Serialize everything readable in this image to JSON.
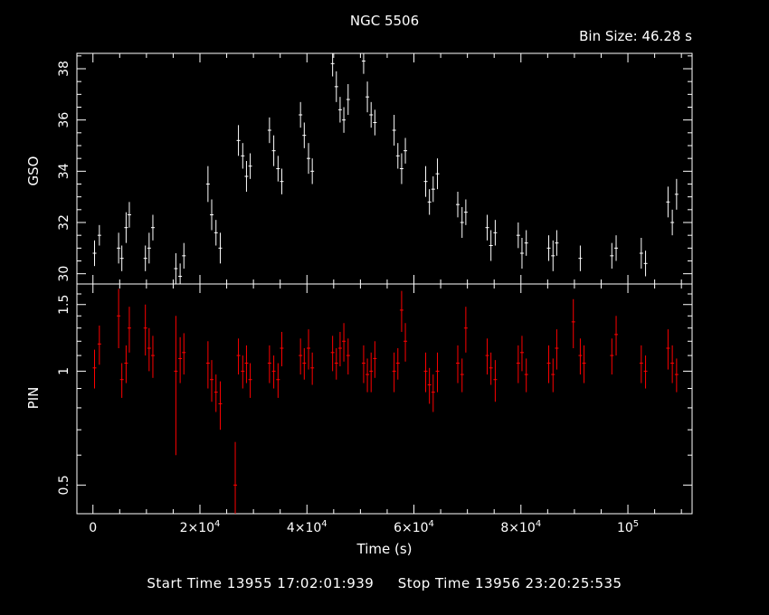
{
  "chart_data": [
    {
      "type": "scatter",
      "title": "NGC 5506",
      "subtitle": "Bin Size: 46.28 s",
      "ylabel": "GSO",
      "xlim": [
        -3000,
        112000
      ],
      "ylim": [
        29.6,
        38.6
      ],
      "yscale": "linear",
      "yticks": [
        30,
        32,
        34,
        36,
        38
      ],
      "ytick_labels": [
        "30",
        "32",
        "34",
        "36",
        "38"
      ],
      "error_bars": true,
      "color": "#ffffff",
      "series": [
        {
          "points": [
            [
              300,
              30.8,
              0.5
            ],
            [
              1200,
              31.5,
              0.4
            ],
            [
              4800,
              31.0,
              0.6
            ],
            [
              5400,
              30.6,
              0.5
            ],
            [
              6200,
              31.8,
              0.6
            ],
            [
              6800,
              32.3,
              0.5
            ],
            [
              9800,
              30.6,
              0.5
            ],
            [
              10500,
              31.0,
              0.6
            ],
            [
              11200,
              31.8,
              0.5
            ],
            [
              15500,
              30.2,
              0.6
            ],
            [
              16300,
              29.9,
              0.5
            ],
            [
              17000,
              30.7,
              0.5
            ],
            [
              21500,
              33.5,
              0.7
            ],
            [
              22200,
              32.3,
              0.6
            ],
            [
              23000,
              31.6,
              0.5
            ],
            [
              23800,
              31.0,
              0.6
            ],
            [
              27200,
              35.2,
              0.6
            ],
            [
              28000,
              34.6,
              0.5
            ],
            [
              28700,
              33.8,
              0.6
            ],
            [
              29400,
              34.2,
              0.5
            ],
            [
              33000,
              35.6,
              0.5
            ],
            [
              33800,
              34.8,
              0.6
            ],
            [
              34600,
              34.1,
              0.5
            ],
            [
              35300,
              33.6,
              0.5
            ],
            [
              38800,
              36.2,
              0.5
            ],
            [
              39500,
              35.4,
              0.5
            ],
            [
              40300,
              34.5,
              0.6
            ],
            [
              41000,
              34.0,
              0.5
            ],
            [
              44800,
              38.2,
              0.5
            ],
            [
              45500,
              37.3,
              0.6
            ],
            [
              46200,
              36.4,
              0.5
            ],
            [
              46900,
              36.0,
              0.5
            ],
            [
              47700,
              36.8,
              0.6
            ],
            [
              50600,
              38.3,
              0.5
            ],
            [
              51300,
              36.9,
              0.6
            ],
            [
              52000,
              36.2,
              0.5
            ],
            [
              52700,
              35.9,
              0.5
            ],
            [
              56300,
              35.6,
              0.6
            ],
            [
              57000,
              34.6,
              0.5
            ],
            [
              57700,
              34.1,
              0.6
            ],
            [
              58400,
              34.8,
              0.5
            ],
            [
              62200,
              33.6,
              0.6
            ],
            [
              62900,
              32.8,
              0.5
            ],
            [
              63600,
              33.3,
              0.5
            ],
            [
              64400,
              33.9,
              0.6
            ],
            [
              68200,
              32.7,
              0.5
            ],
            [
              69000,
              32.0,
              0.6
            ],
            [
              69700,
              32.4,
              0.5
            ],
            [
              73700,
              31.8,
              0.5
            ],
            [
              74400,
              31.1,
              0.6
            ],
            [
              75200,
              31.6,
              0.5
            ],
            [
              79500,
              31.5,
              0.5
            ],
            [
              80200,
              30.8,
              0.6
            ],
            [
              81000,
              31.2,
              0.5
            ],
            [
              85200,
              31.0,
              0.5
            ],
            [
              86000,
              30.7,
              0.6
            ],
            [
              86700,
              31.2,
              0.5
            ],
            [
              91100,
              30.6,
              0.5
            ],
            [
              97000,
              30.7,
              0.5
            ],
            [
              97800,
              31.0,
              0.5
            ],
            [
              102500,
              30.8,
              0.6
            ],
            [
              103300,
              30.4,
              0.5
            ],
            [
              107500,
              32.8,
              0.6
            ],
            [
              108300,
              32.0,
              0.5
            ],
            [
              109100,
              33.1,
              0.6
            ]
          ]
        }
      ]
    },
    {
      "type": "scatter",
      "ylabel": "PIN",
      "xlabel": "Time (s)",
      "xlim": [
        -3000,
        112000
      ],
      "ylim": [
        0.42,
        1.7
      ],
      "yscale": "log",
      "yticks": [
        0.5,
        1,
        1.5
      ],
      "ytick_labels": [
        "0.5",
        "1",
        "1.5"
      ],
      "xticks": [
        0,
        20000,
        40000,
        60000,
        80000,
        100000
      ],
      "xtick_labels": [
        {
          "base": "0",
          "exp": ""
        },
        {
          "base": "2×10",
          "exp": "4"
        },
        {
          "base": "4×10",
          "exp": "4"
        },
        {
          "base": "6×10",
          "exp": "4"
        },
        {
          "base": "8×10",
          "exp": "4"
        },
        {
          "base": "10",
          "exp": "5"
        }
      ],
      "error_bars": true,
      "color": "#ff0000",
      "series": [
        {
          "points": [
            [
              300,
              1.02,
              0.12
            ],
            [
              1200,
              1.18,
              0.14
            ],
            [
              4800,
              1.4,
              0.25
            ],
            [
              5400,
              0.95,
              0.1
            ],
            [
              6200,
              1.05,
              0.12
            ],
            [
              6800,
              1.3,
              0.18
            ],
            [
              9800,
              1.3,
              0.2
            ],
            [
              10500,
              1.15,
              0.15
            ],
            [
              11200,
              1.1,
              0.14
            ],
            [
              15500,
              1.0,
              0.4
            ],
            [
              16300,
              1.08,
              0.15
            ],
            [
              17000,
              1.12,
              0.14
            ],
            [
              21500,
              1.05,
              0.15
            ],
            [
              22200,
              0.95,
              0.12
            ],
            [
              23000,
              0.88,
              0.1
            ],
            [
              23800,
              0.82,
              0.12
            ],
            [
              26600,
              0.5,
              0.15
            ],
            [
              27200,
              1.1,
              0.12
            ],
            [
              28000,
              1.0,
              0.1
            ],
            [
              28700,
              1.05,
              0.12
            ],
            [
              29400,
              0.95,
              0.1
            ],
            [
              33000,
              1.05,
              0.12
            ],
            [
              33800,
              1.0,
              0.1
            ],
            [
              34600,
              0.95,
              0.1
            ],
            [
              35300,
              1.15,
              0.12
            ],
            [
              38800,
              1.1,
              0.12
            ],
            [
              39500,
              1.05,
              0.1
            ],
            [
              40300,
              1.15,
              0.14
            ],
            [
              41000,
              1.02,
              0.1
            ],
            [
              44800,
              1.12,
              0.12
            ],
            [
              45500,
              1.05,
              0.1
            ],
            [
              46200,
              1.15,
              0.12
            ],
            [
              46900,
              1.2,
              0.14
            ],
            [
              47700,
              1.1,
              0.12
            ],
            [
              50600,
              1.05,
              0.12
            ],
            [
              51300,
              0.98,
              0.1
            ],
            [
              52000,
              1.0,
              0.12
            ],
            [
              52700,
              1.08,
              0.12
            ],
            [
              56300,
              1.0,
              0.12
            ],
            [
              57000,
              1.05,
              0.1
            ],
            [
              57700,
              1.45,
              0.18
            ],
            [
              58400,
              1.2,
              0.14
            ],
            [
              62200,
              1.0,
              0.12
            ],
            [
              62900,
              0.92,
              0.1
            ],
            [
              63600,
              0.88,
              0.1
            ],
            [
              64400,
              1.0,
              0.12
            ],
            [
              68200,
              1.05,
              0.12
            ],
            [
              69000,
              0.98,
              0.1
            ],
            [
              69700,
              1.3,
              0.18
            ],
            [
              73700,
              1.1,
              0.12
            ],
            [
              74400,
              1.02,
              0.1
            ],
            [
              75200,
              0.95,
              0.12
            ],
            [
              79500,
              1.05,
              0.12
            ],
            [
              80200,
              1.12,
              0.12
            ],
            [
              81000,
              0.98,
              0.1
            ],
            [
              85200,
              1.05,
              0.12
            ],
            [
              86000,
              0.98,
              0.1
            ],
            [
              86700,
              1.15,
              0.14
            ],
            [
              89800,
              1.35,
              0.2
            ],
            [
              91100,
              1.1,
              0.12
            ],
            [
              91800,
              1.05,
              0.12
            ],
            [
              97000,
              1.1,
              0.12
            ],
            [
              97800,
              1.25,
              0.15
            ],
            [
              102500,
              1.05,
              0.12
            ],
            [
              103300,
              1.0,
              0.1
            ],
            [
              107500,
              1.15,
              0.14
            ],
            [
              108300,
              1.05,
              0.12
            ],
            [
              109100,
              0.98,
              0.1
            ]
          ]
        }
      ]
    }
  ],
  "footer": {
    "start_time": "Start Time 13955 17:02:01:939",
    "stop_time": "Stop Time 13956 23:20:25:535"
  }
}
